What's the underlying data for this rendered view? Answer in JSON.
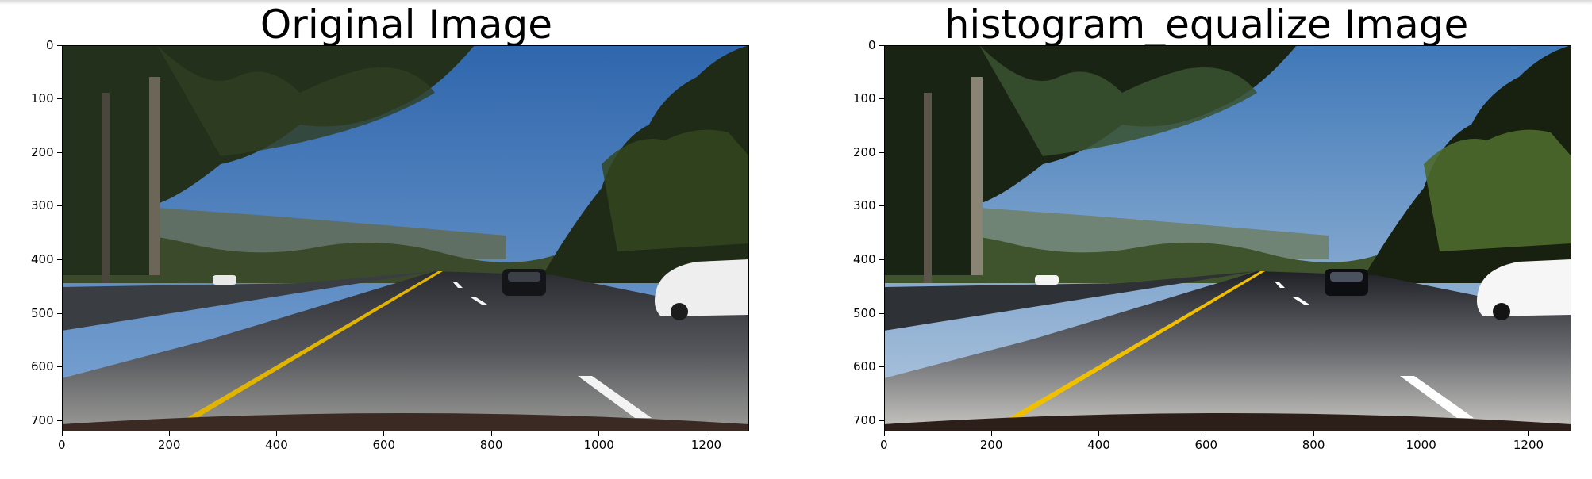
{
  "panels": [
    {
      "title": "Original Image",
      "x_ticks": [
        "0",
        "200",
        "400",
        "600",
        "800",
        "1000",
        "1200"
      ],
      "y_ticks": [
        "0",
        "100",
        "200",
        "300",
        "400",
        "500",
        "600",
        "700"
      ],
      "image": {
        "variant": "original",
        "description_icon": "road-photo"
      }
    },
    {
      "title": "histogram_equalize Image",
      "x_ticks": [
        "0",
        "200",
        "400",
        "600",
        "800",
        "1000",
        "1200"
      ],
      "y_ticks": [
        "0",
        "100",
        "200",
        "300",
        "400",
        "500",
        "600",
        "700"
      ],
      "image": {
        "variant": "equalized",
        "description_icon": "road-photo"
      }
    }
  ],
  "axis": {
    "x_max": 1280,
    "y_max": 720
  },
  "colors": {
    "sky_original": "#4a7fbf",
    "sky_equalized": "#5f8fc0",
    "lane_yellow": "#e0b400",
    "road": "#3a3b40"
  }
}
